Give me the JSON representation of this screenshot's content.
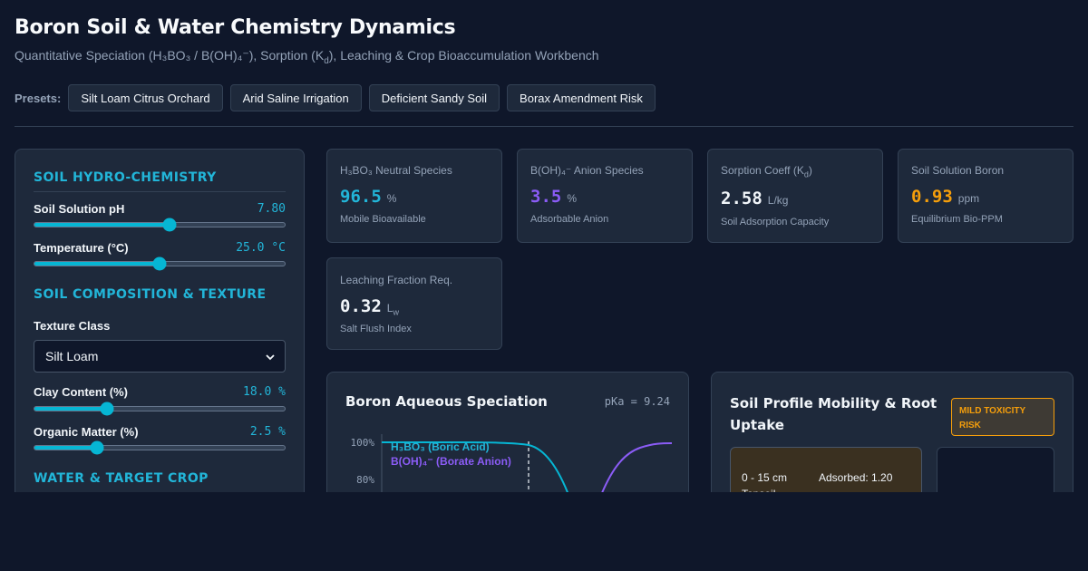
{
  "header": {
    "title": "Boron Soil & Water Chemistry Dynamics",
    "subtitle_pre": "Quantitative Speciation (H₃BO₃ / B(OH)₄⁻), Sorption (K",
    "subtitle_sub": "d",
    "subtitle_post": "), Leaching & Crop Bioaccumulation Workbench"
  },
  "presets": {
    "label": "Presets:",
    "items": [
      "Silt Loam Citrus Orchard",
      "Arid Saline Irrigation",
      "Deficient Sandy Soil",
      "Borax Amendment Risk"
    ]
  },
  "controls": {
    "section1": "SOIL HYDRO-CHEMISTRY",
    "ph": {
      "label": "Soil Solution pH",
      "value": "7.80",
      "fraction": 0.54
    },
    "temp": {
      "label": "Temperature (°C)",
      "value": "25.0 °C",
      "fraction": 0.5
    },
    "section2": "SOIL COMPOSITION & TEXTURE",
    "texture": {
      "label": "Texture Class",
      "selected": "Silt Loam"
    },
    "clay": {
      "label": "Clay Content (%)",
      "value": "18.0 %",
      "fraction": 0.29
    },
    "om": {
      "label": "Organic Matter (%)",
      "value": "2.5 %",
      "fraction": 0.25
    },
    "section3": "WATER & TARGET CROP"
  },
  "metrics": {
    "neutral": {
      "label": "H₃BO₃ Neutral Species",
      "value": "96.5",
      "unit": "%",
      "desc": "Mobile Bioavailable",
      "color": "#22b5d8"
    },
    "anion": {
      "label": "B(OH)₄⁻ Anion Species",
      "value": "3.5",
      "unit": "%",
      "desc": "Adsorbable Anion",
      "color": "#8b5cf6"
    },
    "kd": {
      "label_pre": "Sorption Coeff (K",
      "label_sub": "d",
      "label_post": ")",
      "value": "2.58",
      "unit": "L/kg",
      "desc": "Soil Adsorption Capacity",
      "color": "#f1f5f9"
    },
    "boron": {
      "label": "Soil Solution Boron",
      "value": "0.93",
      "unit": "ppm",
      "desc": "Equilibrium Bio-PPM",
      "color": "#f59e0b"
    },
    "leach": {
      "label": "Leaching Fraction Req.",
      "value": "0.32",
      "unit_main": "L",
      "unit_sub": "w",
      "desc": "Salt Flush Index",
      "color": "#f1f5f9"
    }
  },
  "speciation": {
    "title": "Boron Aqueous Speciation",
    "pka": "pKa = 9.24",
    "legend_acid": "H₃BO₃ (Boric Acid)",
    "legend_anion": "B(OH)₄⁻ (Borate Anion)",
    "colors": {
      "acid": "#06b6d4",
      "anion": "#8b5cf6"
    }
  },
  "chart_data": {
    "type": "line",
    "title": "Boron Aqueous Speciation",
    "ytick_labels": [
      "100%",
      "80%"
    ],
    "series": [
      {
        "name": "H₃BO₃ (Boric Acid)",
        "description": "fraction near 100% at low pH, dropping around pKa 9.24"
      },
      {
        "name": "B(OH)₄⁻ (Borate Anion)",
        "description": "fraction rising toward 100% at high pH"
      }
    ],
    "annotations": [
      "pKa = 9.24"
    ]
  },
  "profile": {
    "title": "Soil Profile Mobility & Root Uptake",
    "risk": "MILD TOXICITY RISK",
    "layer_depth": "0 - 15 cm",
    "layer_ads": "Adsorbed: 1.20",
    "layer_name": "Topsoil"
  }
}
